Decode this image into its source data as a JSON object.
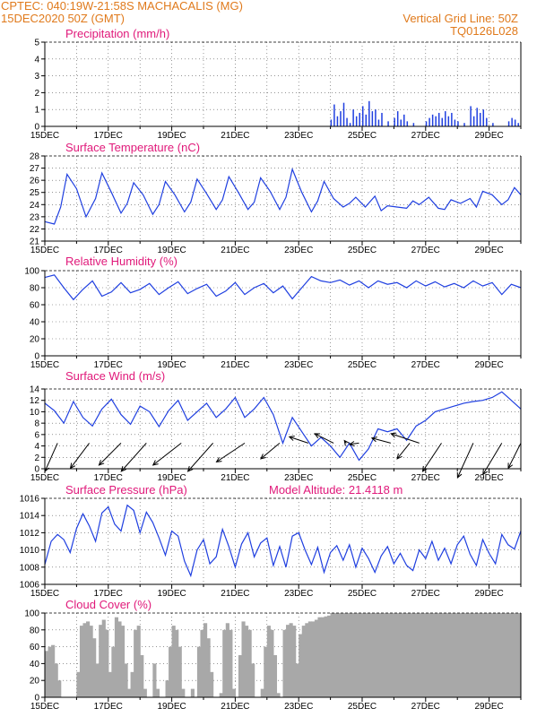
{
  "header": {
    "line1_left": "CPTEC:   040:19W-21:58S   MACHACALIS (MG)",
    "line2_left": "15DEC2020 50Z (GMT)",
    "line1_right": "Vertical Grid Line: 50Z",
    "line2_right": "TQ0126L028"
  },
  "colors": {
    "header": "#e07a1c",
    "title": "#e0197a",
    "line": "#1f3fe0",
    "bar": "#1f3fe0",
    "cloud": "#a8a8a8"
  },
  "chart_data": [
    {
      "type": "bar",
      "title": "Precipitation (mm/h)",
      "ylim": [
        0,
        5
      ],
      "yticks": [
        0,
        1,
        2,
        3,
        4,
        5
      ],
      "x_days": [
        15,
        30
      ],
      "xticks": [
        "15DEC",
        "17DEC",
        "19DEC",
        "21DEC",
        "23DEC",
        "25DEC",
        "27DEC",
        "29DEC"
      ],
      "x": [
        24.0,
        24.1,
        24.2,
        24.3,
        24.4,
        24.5,
        24.6,
        24.7,
        24.8,
        24.9,
        25.0,
        25.1,
        25.2,
        25.3,
        25.4,
        25.5,
        25.6,
        25.8,
        26.0,
        26.1,
        26.2,
        26.3,
        26.4,
        26.6,
        27.0,
        27.1,
        27.2,
        27.3,
        27.4,
        27.5,
        27.6,
        27.7,
        27.8,
        27.9,
        28.0,
        28.2,
        28.4,
        28.5,
        28.6,
        28.7,
        28.8,
        28.9,
        29.1,
        29.6,
        29.7,
        29.8,
        29.9
      ],
      "values": [
        0.4,
        1.3,
        0.6,
        0.9,
        1.4,
        0.5,
        0.2,
        1.0,
        0.6,
        0.8,
        1.2,
        0.7,
        1.5,
        0.9,
        1.0,
        0.4,
        0.8,
        0.3,
        0.5,
        0.9,
        0.4,
        0.7,
        0.3,
        0.2,
        0.3,
        0.5,
        0.7,
        0.6,
        0.8,
        0.5,
        0.9,
        0.6,
        0.8,
        0.4,
        0.3,
        0.2,
        1.2,
        0.6,
        1.1,
        0.8,
        1.0,
        0.5,
        0.2,
        0.3,
        0.5,
        0.4,
        0.2
      ]
    },
    {
      "type": "line",
      "title": "Surface Temperature (nC)",
      "ylim": [
        21,
        28
      ],
      "yticks": [
        21,
        22,
        23,
        24,
        25,
        26,
        27,
        28
      ],
      "x_days": [
        15,
        30
      ],
      "xticks": [
        "15DEC",
        "17DEC",
        "19DEC",
        "21DEC",
        "23DEC",
        "25DEC",
        "27DEC",
        "29DEC"
      ],
      "x": [
        15.0,
        15.3,
        15.5,
        15.7,
        16.0,
        16.3,
        16.6,
        16.8,
        17.1,
        17.4,
        17.6,
        17.8,
        18.1,
        18.4,
        18.6,
        18.8,
        19.1,
        19.4,
        19.6,
        19.8,
        20.1,
        20.4,
        20.6,
        20.8,
        21.1,
        21.4,
        21.6,
        21.8,
        22.1,
        22.4,
        22.6,
        22.8,
        23.1,
        23.4,
        23.6,
        23.8,
        24.1,
        24.4,
        24.6,
        24.8,
        25.1,
        25.4,
        25.6,
        25.8,
        26.1,
        26.4,
        26.6,
        26.8,
        27.1,
        27.4,
        27.6,
        27.8,
        28.1,
        28.4,
        28.6,
        28.8,
        29.1,
        29.4,
        29.6,
        29.8,
        30.0
      ],
      "values": [
        22.6,
        22.4,
        23.8,
        26.5,
        25.3,
        23.0,
        24.5,
        26.6,
        25.0,
        23.3,
        24.1,
        25.8,
        24.8,
        23.2,
        24.0,
        25.9,
        24.8,
        23.4,
        24.2,
        26.1,
        24.9,
        23.6,
        24.4,
        26.3,
        25.0,
        23.6,
        24.2,
        26.2,
        25.1,
        23.6,
        24.6,
        26.9,
        25.0,
        23.4,
        24.3,
        25.9,
        24.5,
        23.8,
        24.1,
        24.6,
        23.8,
        24.7,
        23.5,
        23.9,
        23.8,
        23.7,
        24.3,
        24.0,
        24.6,
        23.7,
        23.6,
        24.4,
        24.1,
        24.5,
        23.8,
        25.1,
        24.8,
        24.0,
        24.4,
        25.4,
        24.8
      ]
    },
    {
      "type": "line",
      "title": "Relative Humidity (%)",
      "ylim": [
        0,
        100
      ],
      "yticks": [
        0,
        20,
        40,
        60,
        80,
        100
      ],
      "x_days": [
        15,
        30
      ],
      "xticks": [
        "15DEC",
        "17DEC",
        "19DEC",
        "21DEC",
        "23DEC",
        "25DEC",
        "27DEC",
        "29DEC"
      ],
      "x": [
        15.0,
        15.3,
        15.6,
        15.9,
        16.2,
        16.5,
        16.8,
        17.1,
        17.4,
        17.7,
        18.0,
        18.3,
        18.6,
        18.9,
        19.2,
        19.5,
        19.8,
        20.1,
        20.4,
        20.7,
        21.0,
        21.3,
        21.6,
        21.9,
        22.2,
        22.5,
        22.8,
        23.1,
        23.4,
        23.7,
        24.0,
        24.3,
        24.6,
        24.9,
        25.2,
        25.5,
        25.8,
        26.1,
        26.4,
        26.7,
        27.0,
        27.3,
        27.6,
        27.9,
        28.2,
        28.5,
        28.8,
        29.1,
        29.4,
        29.7,
        30.0
      ],
      "values": [
        92,
        95,
        80,
        66,
        78,
        88,
        70,
        75,
        86,
        74,
        78,
        85,
        72,
        80,
        87,
        73,
        79,
        84,
        70,
        76,
        86,
        72,
        80,
        85,
        74,
        82,
        67,
        80,
        93,
        88,
        86,
        89,
        83,
        88,
        80,
        88,
        84,
        86,
        80,
        88,
        82,
        87,
        81,
        85,
        80,
        88,
        82,
        86,
        72,
        84,
        80
      ]
    },
    {
      "type": "line",
      "title": "Surface Wind (m/s)",
      "ylim": [
        0,
        14
      ],
      "yticks": [
        0,
        2,
        4,
        6,
        8,
        10,
        12,
        14
      ],
      "x_days": [
        15,
        30
      ],
      "xticks": [
        "15DEC",
        "17DEC",
        "19DEC",
        "21DEC",
        "23DEC",
        "25DEC",
        "27DEC",
        "29DEC"
      ],
      "x": [
        15.0,
        15.3,
        15.6,
        15.9,
        16.2,
        16.5,
        16.8,
        17.1,
        17.4,
        17.7,
        18.0,
        18.3,
        18.6,
        18.9,
        19.2,
        19.5,
        19.8,
        20.1,
        20.4,
        20.7,
        21.0,
        21.3,
        21.6,
        21.9,
        22.2,
        22.5,
        22.8,
        23.1,
        23.4,
        23.7,
        24.0,
        24.3,
        24.6,
        24.9,
        25.2,
        25.5,
        25.8,
        26.1,
        26.4,
        26.7,
        27.0,
        27.3,
        27.6,
        27.9,
        28.2,
        28.5,
        28.8,
        29.1,
        29.4,
        29.7,
        30.0
      ],
      "values": [
        11.5,
        10.2,
        8.0,
        11.8,
        9.0,
        7.5,
        10.5,
        12.2,
        9.5,
        7.8,
        11.0,
        10.0,
        7.4,
        10.2,
        12.0,
        8.5,
        10.0,
        11.5,
        9.0,
        10.5,
        12.5,
        9.0,
        10.5,
        12.5,
        9.5,
        4.5,
        9.0,
        6.5,
        4.0,
        5.5,
        4.0,
        2.0,
        4.5,
        1.5,
        3.5,
        7.0,
        6.5,
        7.0,
        5.0,
        7.5,
        8.5,
        10.0,
        10.5,
        11.0,
        11.5,
        11.8,
        12.0,
        12.5,
        13.5,
        12.0,
        10.5
      ],
      "arrows": [
        {
          "x": 15.4,
          "u": -2.0,
          "v": -4.5
        },
        {
          "x": 16.4,
          "u": -3.0,
          "v": -4.0
        },
        {
          "x": 17.4,
          "u": -3.5,
          "v": -3.5
        },
        {
          "x": 18.2,
          "u": -4.0,
          "v": -4.5
        },
        {
          "x": 19.3,
          "u": -4.5,
          "v": -3.5
        },
        {
          "x": 20.3,
          "u": -4.0,
          "v": -4.5
        },
        {
          "x": 21.3,
          "u": -4.5,
          "v": -3.0
        },
        {
          "x": 22.4,
          "u": -3.0,
          "v": -2.5
        },
        {
          "x": 23.3,
          "u": -3.0,
          "v": 1.0
        },
        {
          "x": 24.1,
          "u": -3.0,
          "v": 1.5
        },
        {
          "x": 24.5,
          "u": -0.3,
          "v": 0.4
        },
        {
          "x": 24.9,
          "u": -1.5,
          "v": -0.2
        },
        {
          "x": 25.9,
          "u": -3.0,
          "v": 0.8
        },
        {
          "x": 26.8,
          "u": -4.5,
          "v": 1.5
        },
        {
          "x": 26.5,
          "u": -2.0,
          "v": -2.5
        },
        {
          "x": 27.5,
          "u": -3.0,
          "v": -4.5
        },
        {
          "x": 28.5,
          "u": -2.5,
          "v": -5.5
        },
        {
          "x": 29.4,
          "u": -3.0,
          "v": -5.0
        },
        {
          "x": 30.0,
          "u": -2.0,
          "v": -4.0
        }
      ]
    },
    {
      "type": "line",
      "title": "Surface Pressure (hPa)",
      "annotation": "Model Altitude: 21.4118 m",
      "ylim": [
        1006,
        1016
      ],
      "yticks": [
        1006,
        1008,
        1010,
        1012,
        1014,
        1016
      ],
      "x_days": [
        15,
        30
      ],
      "xticks": [
        "15DEC",
        "17DEC",
        "19DEC",
        "21DEC",
        "23DEC",
        "25DEC",
        "27DEC",
        "29DEC"
      ],
      "x": [
        15.0,
        15.2,
        15.4,
        15.6,
        15.8,
        16.0,
        16.2,
        16.4,
        16.6,
        16.8,
        17.0,
        17.2,
        17.4,
        17.6,
        17.8,
        18.0,
        18.2,
        18.4,
        18.6,
        18.8,
        19.0,
        19.2,
        19.4,
        19.6,
        19.8,
        20.0,
        20.2,
        20.4,
        20.6,
        20.8,
        21.0,
        21.2,
        21.4,
        21.6,
        21.8,
        22.0,
        22.2,
        22.4,
        22.6,
        22.8,
        23.0,
        23.2,
        23.4,
        23.6,
        23.8,
        24.0,
        24.2,
        24.4,
        24.6,
        24.8,
        25.0,
        25.2,
        25.4,
        25.6,
        25.8,
        26.0,
        26.2,
        26.4,
        26.6,
        26.8,
        27.0,
        27.2,
        27.4,
        27.6,
        27.8,
        28.0,
        28.2,
        28.4,
        28.6,
        28.8,
        29.0,
        29.2,
        29.4,
        29.6,
        29.8,
        30.0
      ],
      "values": [
        1008.3,
        1011.0,
        1011.8,
        1011.2,
        1009.7,
        1012.5,
        1014.2,
        1012.8,
        1011.0,
        1014.3,
        1015.0,
        1013.0,
        1012.2,
        1015.2,
        1014.6,
        1012.0,
        1014.4,
        1013.2,
        1011.4,
        1009.4,
        1012.2,
        1011.6,
        1008.7,
        1007.0,
        1010.0,
        1011.2,
        1008.4,
        1009.2,
        1012.4,
        1010.4,
        1008.0,
        1010.7,
        1012.0,
        1009.2,
        1010.8,
        1011.4,
        1008.2,
        1010.4,
        1008.0,
        1011.6,
        1012.0,
        1010.0,
        1008.3,
        1010.3,
        1007.4,
        1009.7,
        1010.5,
        1008.8,
        1010.6,
        1008.0,
        1010.2,
        1009.0,
        1007.4,
        1009.3,
        1010.4,
        1008.4,
        1009.6,
        1008.2,
        1007.6,
        1010.0,
        1009.0,
        1011.0,
        1008.8,
        1010.2,
        1008.4,
        1010.6,
        1011.6,
        1009.5,
        1008.2,
        1011.2,
        1009.6,
        1008.4,
        1011.8,
        1010.6,
        1010.1,
        1012.2
      ]
    },
    {
      "type": "bar",
      "title": "Cloud Cover (%)",
      "ylim": [
        0,
        100
      ],
      "yticks": [
        0,
        20,
        40,
        60,
        80,
        100
      ],
      "x_days": [
        15,
        30
      ],
      "xticks": [
        "15DEC",
        "17DEC",
        "19DEC",
        "21DEC",
        "23DEC",
        "25DEC",
        "27DEC",
        "29DEC"
      ],
      "x": [
        15.0,
        15.1,
        15.2,
        15.3,
        15.4,
        15.5,
        15.6,
        15.7,
        15.8,
        15.9,
        16.0,
        16.1,
        16.2,
        16.3,
        16.4,
        16.5,
        16.6,
        16.7,
        16.8,
        16.9,
        17.0,
        17.1,
        17.2,
        17.3,
        17.4,
        17.5,
        17.6,
        17.7,
        17.8,
        17.9,
        18.0,
        18.1,
        18.2,
        18.3,
        18.4,
        18.5,
        18.6,
        18.7,
        18.8,
        18.9,
        19.0,
        19.1,
        19.2,
        19.3,
        19.4,
        19.5,
        19.6,
        19.7,
        19.8,
        19.9,
        20.0,
        20.1,
        20.2,
        20.3,
        20.4,
        20.5,
        20.6,
        20.7,
        20.8,
        20.9,
        21.0,
        21.1,
        21.2,
        21.3,
        21.4,
        21.5,
        21.6,
        21.7,
        21.8,
        21.9,
        22.0,
        22.1,
        22.2,
        22.3,
        22.4,
        22.5,
        22.6,
        22.7,
        22.8,
        22.9,
        23.0,
        23.1,
        23.2,
        23.3,
        23.4,
        23.5,
        23.6,
        23.7,
        23.8,
        23.9,
        24.0
      ],
      "values": [
        55,
        60,
        62,
        40,
        20,
        0,
        0,
        0,
        0,
        0,
        30,
        85,
        88,
        90,
        85,
        70,
        40,
        86,
        92,
        80,
        30,
        60,
        95,
        90,
        85,
        40,
        10,
        30,
        80,
        85,
        50,
        10,
        0,
        0,
        40,
        10,
        0,
        0,
        20,
        60,
        85,
        80,
        60,
        10,
        0,
        0,
        10,
        0,
        60,
        80,
        88,
        70,
        30,
        0,
        0,
        5,
        80,
        88,
        80,
        10,
        0,
        50,
        90,
        85,
        80,
        40,
        0,
        0,
        10,
        60,
        85,
        80,
        50,
        5,
        0,
        80,
        86,
        88,
        85,
        40,
        75,
        85,
        88,
        90,
        90,
        92,
        95,
        95,
        96,
        97,
        100
      ]
    }
  ]
}
